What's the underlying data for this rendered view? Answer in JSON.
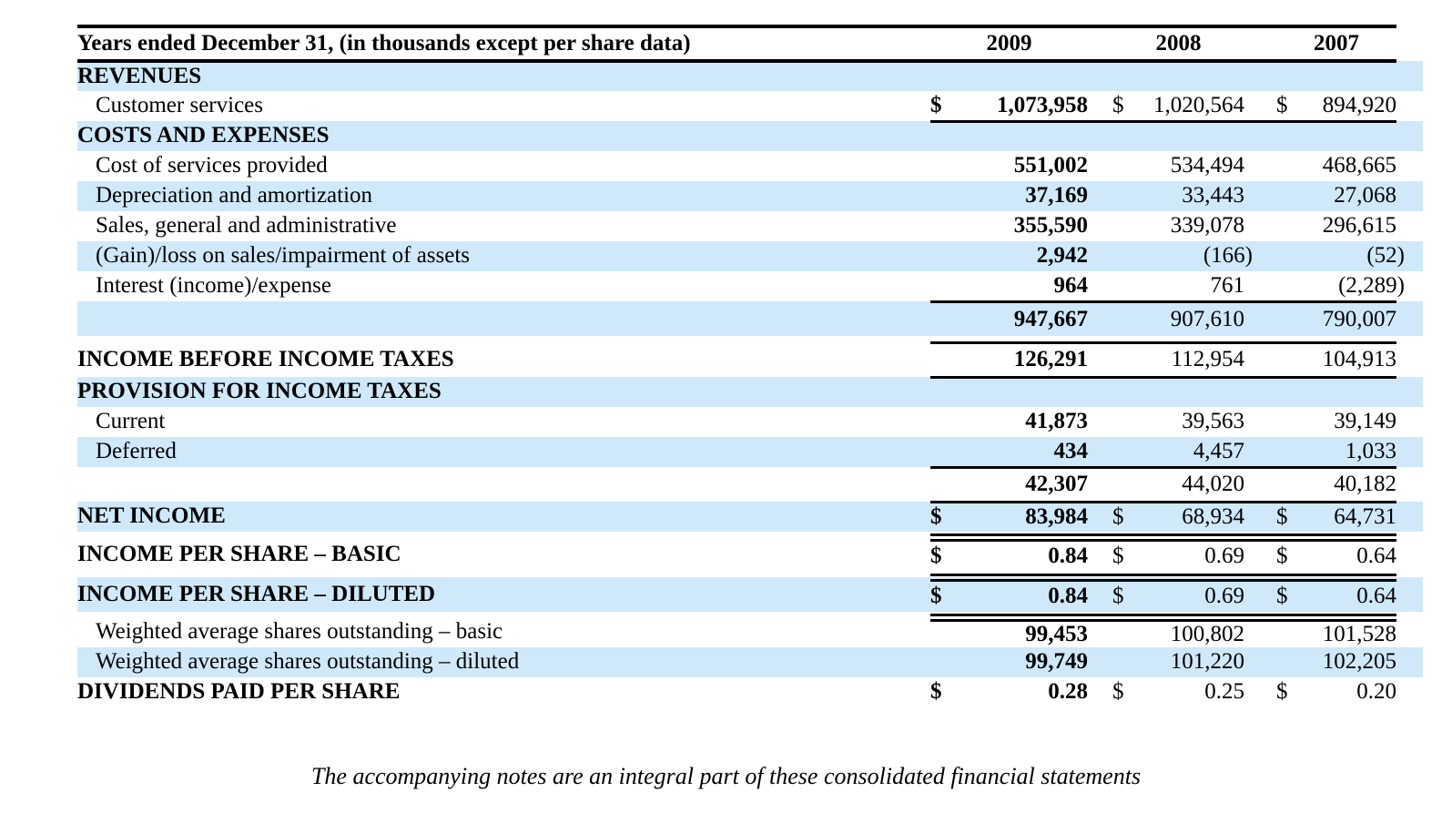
{
  "colors": {
    "stripe_blue": "#cfe9fb",
    "rule_black": "#000000"
  },
  "statement": {
    "currency": "$",
    "header": {
      "label": "Years ended December 31, (in thousands except per share data)",
      "years": [
        "2009",
        "2008",
        "2007"
      ]
    },
    "rows": [
      {
        "name": "revenues-section",
        "label": "REVENUES",
        "kind": "section",
        "bg": "blue"
      },
      {
        "name": "customer-services",
        "label": "Customer services",
        "kind": "item",
        "bg": "white",
        "dollar": true,
        "values": [
          "1,073,958",
          "1,020,564",
          "894,920"
        ],
        "rule_bottom": "single"
      },
      {
        "name": "costs-and-expenses-section",
        "label": "COSTS AND EXPENSES",
        "kind": "section",
        "bg": "blue"
      },
      {
        "name": "cost-of-services-provided",
        "label": "Cost of services provided",
        "kind": "item",
        "bg": "white",
        "values": [
          "551,002",
          "534,494",
          "468,665"
        ]
      },
      {
        "name": "depreciation-amortization",
        "label": "Depreciation and amortization",
        "kind": "item",
        "bg": "blue",
        "values": [
          "37,169",
          "33,443",
          "27,068"
        ]
      },
      {
        "name": "sales-general-administrative",
        "label": "Sales, general and administrative",
        "kind": "item",
        "bg": "white",
        "values": [
          "355,590",
          "339,078",
          "296,615"
        ]
      },
      {
        "name": "gain-loss-on-sales",
        "label": "(Gain)/loss on sales/impairment of assets",
        "kind": "item",
        "bg": "blue",
        "values": [
          "2,942",
          "(166)",
          "(52)"
        ]
      },
      {
        "name": "interest-income-expense",
        "label": "Interest (income)/expense",
        "kind": "item",
        "bg": "white",
        "values": [
          "964",
          "761",
          "(2,289)"
        ],
        "rule_bottom": "single"
      },
      {
        "name": "total-costs-and-expenses",
        "label": "",
        "kind": "subtotal",
        "bg": "blue",
        "values": [
          "947,667",
          "907,610",
          "790,007"
        ],
        "tall": true
      },
      {
        "name": "income-before-income-taxes",
        "label": "INCOME BEFORE INCOME TAXES",
        "kind": "section",
        "bg": "white",
        "values": [
          "126,291",
          "112,954",
          "104,913"
        ],
        "rule_top": "single",
        "rule_bottom": "single",
        "spacer_above": 7,
        "tall": true
      },
      {
        "name": "provision-for-income-taxes-section",
        "label": "PROVISION FOR INCOME TAXES",
        "kind": "section",
        "bg": "blue"
      },
      {
        "name": "current-taxes",
        "label": "Current",
        "kind": "item",
        "bg": "white",
        "values": [
          "41,873",
          "39,563",
          "39,149"
        ]
      },
      {
        "name": "deferred-taxes",
        "label": "Deferred",
        "kind": "item",
        "bg": "blue",
        "values": [
          "434",
          "4,457",
          "1,033"
        ],
        "rule_bottom": "single"
      },
      {
        "name": "total-provision-for-taxes",
        "label": "",
        "kind": "subtotal",
        "bg": "white",
        "values": [
          "42,307",
          "44,020",
          "40,182"
        ],
        "tall": true
      },
      {
        "name": "net-income",
        "label": "NET INCOME",
        "kind": "section",
        "bg": "blue",
        "dollar": true,
        "values": [
          "83,984",
          "68,934",
          "64,731"
        ],
        "rule_top": "single",
        "rule_bottom": "double"
      },
      {
        "name": "income-per-share-basic",
        "label": "INCOME PER SHARE – BASIC",
        "kind": "section",
        "bg": "white",
        "dollar": true,
        "values": [
          "0.84",
          "0.69",
          "0.64"
        ],
        "rule_bottom": "double",
        "tall": true
      },
      {
        "name": "income-per-share-diluted",
        "label": "INCOME PER SHARE – DILUTED",
        "kind": "section",
        "bg": "blue",
        "dollar": true,
        "values": [
          "0.84",
          "0.69",
          "0.64"
        ],
        "rule_bottom": "double",
        "tall": true
      },
      {
        "name": "weighted-average-shares-basic",
        "label": "Weighted average shares outstanding – basic",
        "kind": "item",
        "bg": "white",
        "values": [
          "99,453",
          "100,802",
          "101,528"
        ]
      },
      {
        "name": "weighted-average-shares-diluted",
        "label": "Weighted average shares outstanding – diluted",
        "kind": "item",
        "bg": "blue",
        "values": [
          "99,749",
          "101,220",
          "102,205"
        ]
      },
      {
        "name": "dividends-paid-per-share",
        "label": "DIVIDENDS PAID PER SHARE",
        "kind": "section",
        "bg": "white",
        "dollar": true,
        "values": [
          "0.28",
          "0.25",
          "0.20"
        ]
      }
    ],
    "footnote": "The accompanying notes are an integral part of these consolidated financial statements"
  }
}
